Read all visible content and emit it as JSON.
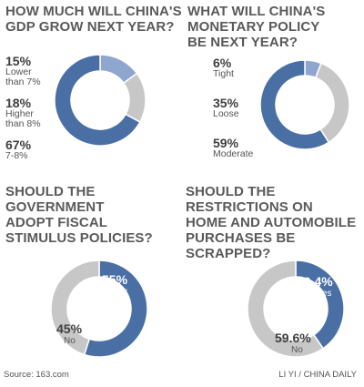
{
  "chart_data": [
    {
      "type": "pie",
      "title": [
        "HOW MUCH WILL CHINA'S",
        "GDP GROW NEXT YEAR?"
      ],
      "slices": [
        {
          "value": 15,
          "label": "15%",
          "desc": [
            "Lower",
            "than 7%"
          ],
          "color": "#8fa6cf"
        },
        {
          "value": 18,
          "label": "18%",
          "desc": [
            "Higher",
            "than 8%"
          ],
          "color": "#c7c7c7"
        },
        {
          "value": 67,
          "label": "67%",
          "desc": [
            "7-8%"
          ],
          "color": "#4a6fa5"
        }
      ]
    },
    {
      "type": "pie",
      "title": [
        "WHAT WILL CHINA'S",
        "MONETARY POLICY",
        "BE NEXT YEAR?"
      ],
      "slices": [
        {
          "value": 6,
          "label": "6%",
          "desc": [
            "Tight"
          ],
          "color": "#8fa6cf"
        },
        {
          "value": 35,
          "label": "35%",
          "desc": [
            "Loose"
          ],
          "color": "#c7c7c7"
        },
        {
          "value": 59,
          "label": "59%",
          "desc": [
            "Moderate"
          ],
          "color": "#4a6fa5"
        }
      ]
    },
    {
      "type": "pie",
      "title": [
        "SHOULD THE",
        "GOVERNMENT",
        "ADOPT FISCAL",
        "STIMULUS POLICIES?"
      ],
      "slices": [
        {
          "value": 55,
          "label": "55%",
          "desc": [
            "Yes"
          ],
          "color": "#4a6fa5"
        },
        {
          "value": 45,
          "label": "45%",
          "desc": [
            "No"
          ],
          "color": "#c7c7c7"
        }
      ]
    },
    {
      "type": "pie",
      "title": [
        "SHOULD THE",
        "RESTRICTIONS ON",
        "HOME AND AUTOMOBILE",
        "PURCHASES BE SCRAPPED?"
      ],
      "slices": [
        {
          "value": 40.4,
          "label": "40.4%",
          "desc": [
            "Yes"
          ],
          "color": "#4a6fa5"
        },
        {
          "value": 59.6,
          "label": "59.6%",
          "desc": [
            "No"
          ],
          "color": "#c7c7c7"
        }
      ]
    }
  ],
  "footer": {
    "source": "Source: 163.com",
    "credit": "LI YI / CHINA DAILY"
  }
}
